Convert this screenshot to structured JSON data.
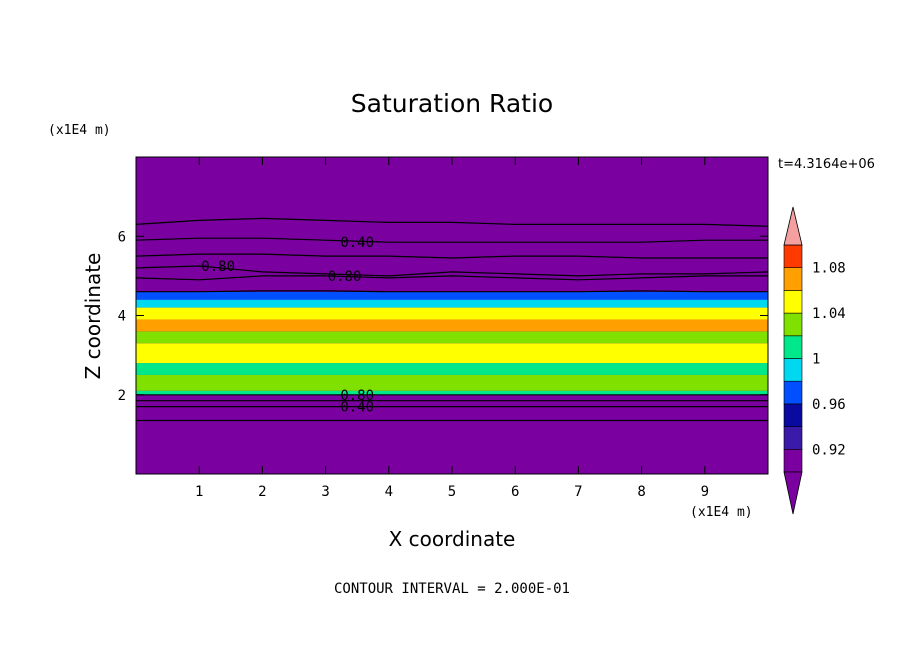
{
  "chart_data": {
    "type": "heatmap",
    "title": "Saturation Ratio",
    "xlabel": "X coordinate",
    "ylabel": "Z coordinate",
    "x_unit": "(x1E4 m)",
    "y_unit": "(x1E4 m)",
    "time_label": "t=4.3164e+06",
    "footer": "CONTOUR INTERVAL = 2.000E-01",
    "xlim": [
      0,
      10
    ],
    "ylim": [
      0,
      8
    ],
    "x_ticks": [
      1,
      2,
      3,
      4,
      5,
      6,
      7,
      8,
      9
    ],
    "y_ticks": [
      2,
      4,
      6
    ],
    "colorbar": {
      "levels": [
        0.9,
        0.92,
        0.94,
        0.96,
        0.98,
        1.0,
        1.02,
        1.04,
        1.06,
        1.08,
        1.1
      ],
      "tick_labels": [
        "0.92",
        "0.96",
        "1",
        "1.04",
        "1.08"
      ],
      "tick_values": [
        0.92,
        0.96,
        1.0,
        1.04,
        1.08
      ],
      "colors": [
        "#7a00a0",
        "#3a1aa8",
        "#0a0aa0",
        "#0050ff",
        "#00d8f0",
        "#00e88a",
        "#80e000",
        "#ffff00",
        "#ffa000",
        "#ff3a00",
        "#ff2020"
      ],
      "over_color": "#f4a0a0",
      "under_color": "#7a00a0"
    },
    "background_color": "#7a00a0",
    "bands": [
      {
        "z_range": [
          0.0,
          2.0
        ],
        "value": 0.88,
        "color": "#7a00a0"
      },
      {
        "z_range": [
          2.0,
          2.1
        ],
        "value": 0.97,
        "color": "#00e88a"
      },
      {
        "z_range": [
          2.1,
          2.5
        ],
        "value": 1.02,
        "color": "#80e000"
      },
      {
        "z_range": [
          2.5,
          2.8
        ],
        "value": 1.0,
        "color": "#00e88a"
      },
      {
        "z_range": [
          2.8,
          3.3
        ],
        "value": 1.04,
        "color": "#ffff00"
      },
      {
        "z_range": [
          3.3,
          3.6
        ],
        "value": 1.02,
        "color": "#80e000"
      },
      {
        "z_range": [
          3.6,
          3.9
        ],
        "value": 1.06,
        "color": "#ffa000"
      },
      {
        "z_range": [
          3.9,
          4.2
        ],
        "value": 1.04,
        "color": "#ffff00"
      },
      {
        "z_range": [
          4.2,
          4.4
        ],
        "value": 0.98,
        "color": "#00d8f0"
      },
      {
        "z_range": [
          4.4,
          4.6
        ],
        "value": 0.95,
        "color": "#0050ff"
      },
      {
        "z_range": [
          4.6,
          8.0
        ],
        "value": 0.6,
        "color": "#7a00a0"
      }
    ],
    "contours": [
      {
        "level": 0.4,
        "z": [
          6.3,
          6.4,
          6.45,
          6.4,
          6.35,
          6.35,
          6.3,
          6.3,
          6.3,
          6.3,
          6.25
        ]
      },
      {
        "level": 0.4,
        "z": [
          5.9,
          5.95,
          5.95,
          5.9,
          5.85,
          5.85,
          5.85,
          5.85,
          5.85,
          5.9,
          5.9
        ],
        "label": "0.40",
        "label_x": 3.5
      },
      {
        "level": 0.6,
        "z": [
          5.5,
          5.55,
          5.55,
          5.5,
          5.5,
          5.45,
          5.5,
          5.5,
          5.45,
          5.45,
          5.45
        ]
      },
      {
        "level": 0.8,
        "z": [
          5.2,
          5.25,
          5.1,
          5.05,
          5.0,
          5.1,
          5.05,
          5.0,
          5.05,
          5.05,
          5.1
        ],
        "label": "0.80",
        "label_x": 1.3
      },
      {
        "level": 0.8,
        "z": [
          4.95,
          4.9,
          5.0,
          5.0,
          4.95,
          5.0,
          4.95,
          4.9,
          4.95,
          5.0,
          5.0
        ],
        "label": "0.80",
        "label_x": 3.3
      },
      {
        "level": 0.9,
        "z": [
          4.6,
          4.6,
          4.62,
          4.62,
          4.6,
          4.6,
          4.6,
          4.6,
          4.62,
          4.6,
          4.6
        ]
      },
      {
        "level": 0.8,
        "z": [
          2.0,
          2.0,
          2.0,
          2.0,
          2.0,
          2.0,
          2.0,
          2.0,
          2.0,
          2.0,
          2.0
        ],
        "label": "0.80",
        "label_x": 3.5
      },
      {
        "level": 0.6,
        "z": [
          1.85,
          1.85,
          1.85,
          1.85,
          1.85,
          1.85,
          1.85,
          1.85,
          1.85,
          1.85,
          1.85
        ]
      },
      {
        "level": 0.4,
        "z": [
          1.7,
          1.7,
          1.7,
          1.7,
          1.7,
          1.7,
          1.7,
          1.7,
          1.7,
          1.7,
          1.7
        ],
        "label": "0.40",
        "label_x": 3.5
      },
      {
        "level": 0.2,
        "z": [
          1.35,
          1.35,
          1.35,
          1.35,
          1.35,
          1.35,
          1.35,
          1.35,
          1.35,
          1.35,
          1.35
        ]
      }
    ]
  }
}
